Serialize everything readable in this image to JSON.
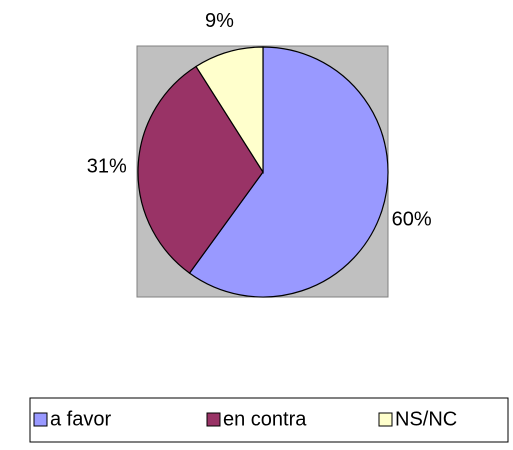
{
  "chart_data": {
    "type": "pie",
    "categories": [
      "a favor",
      "en contra",
      "NS/NC"
    ],
    "values": [
      60,
      31,
      9
    ],
    "value_labels": [
      "60%",
      "31%",
      "9%"
    ],
    "colors": [
      "#9999ff",
      "#993366",
      "#ffffcc"
    ],
    "legend": "bottom"
  }
}
